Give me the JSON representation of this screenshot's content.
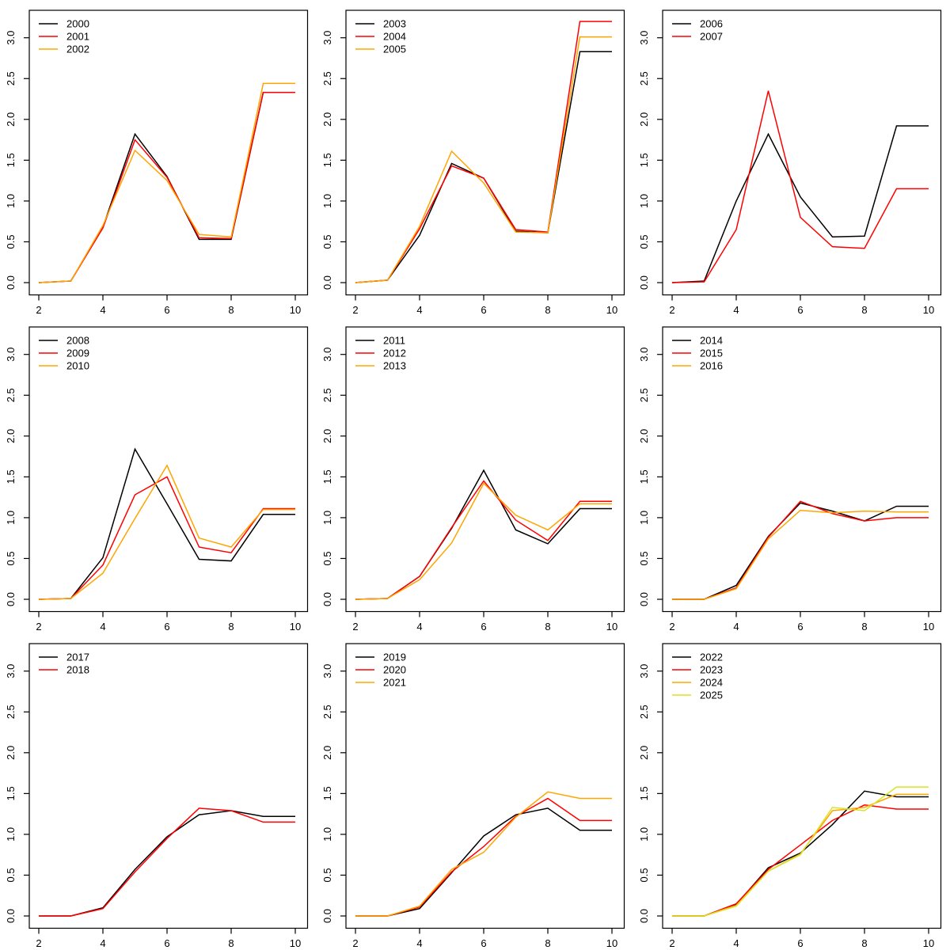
{
  "figure": {
    "background": "#ffffff",
    "grid_layout": "3x3",
    "axis_color": "#000000"
  },
  "chart_data": {
    "type": "line",
    "title": "",
    "xlabel": "",
    "ylabel": "",
    "x": [
      2,
      3,
      4,
      5,
      6,
      7,
      8,
      9,
      10
    ],
    "xlim": [
      2,
      10
    ],
    "ylim": [
      0,
      3.3
    ],
    "x_ticks": [
      2,
      4,
      6,
      8,
      10
    ],
    "x_tick_labels": [
      "2",
      "4",
      "6",
      "8",
      "10"
    ],
    "y_ticks": [
      0,
      0.5,
      1,
      1.5,
      2,
      2.5,
      3
    ],
    "y_tick_labels": [
      "0.0",
      "0.5",
      "1.0",
      "1.5",
      "2.0",
      "2.5",
      "3.0"
    ],
    "grid": false,
    "legend_position": "top-left",
    "colors": {
      "black": "#000000",
      "red": "#FF0000",
      "orange": "#FFA500",
      "yellow": "#D8E424"
    },
    "panels": [
      {
        "series": [
          {
            "name": "2000",
            "color": "#000000",
            "values": [
              0,
              0.02,
              0.68,
              1.82,
              1.3,
              0.53,
              0.53,
              2.33,
              2.33
            ]
          },
          {
            "name": "2001",
            "color": "#FF0000",
            "values": [
              0,
              0.02,
              0.67,
              1.75,
              1.29,
              0.55,
              0.54,
              2.33,
              2.33
            ]
          },
          {
            "name": "2002",
            "color": "#FFA500",
            "values": [
              0,
              0.02,
              0.7,
              1.62,
              1.25,
              0.59,
              0.56,
              2.44,
              2.44
            ]
          }
        ]
      },
      {
        "series": [
          {
            "name": "2003",
            "color": "#000000",
            "values": [
              0,
              0.03,
              0.58,
              1.46,
              1.28,
              0.63,
              0.61,
              2.83,
              2.83
            ]
          },
          {
            "name": "2004",
            "color": "#FF0000",
            "values": [
              0,
              0.03,
              0.66,
              1.43,
              1.28,
              0.65,
              0.62,
              3.2,
              3.2
            ]
          },
          {
            "name": "2005",
            "color": "#FFA500",
            "values": [
              0,
              0.03,
              0.69,
              1.61,
              1.22,
              0.62,
              0.61,
              3.01,
              3.01
            ]
          }
        ]
      },
      {
        "series": [
          {
            "name": "2006",
            "color": "#000000",
            "values": [
              0,
              0.02,
              1.0,
              1.82,
              1.05,
              0.56,
              0.57,
              1.92,
              1.92
            ]
          },
          {
            "name": "2007",
            "color": "#FF0000",
            "values": [
              0,
              0.01,
              0.65,
              2.35,
              0.8,
              0.44,
              0.42,
              1.15,
              1.15
            ]
          }
        ]
      },
      {
        "series": [
          {
            "name": "2008",
            "color": "#000000",
            "values": [
              0,
              0.01,
              0.51,
              1.84,
              1.17,
              0.49,
              0.47,
              1.04,
              1.04
            ]
          },
          {
            "name": "2009",
            "color": "#FF0000",
            "values": [
              0,
              0.01,
              0.42,
              1.28,
              1.5,
              0.64,
              0.57,
              1.11,
              1.11
            ]
          },
          {
            "name": "2010",
            "color": "#FFA500",
            "values": [
              0,
              0.01,
              0.32,
              0.99,
              1.64,
              0.75,
              0.64,
              1.1,
              1.1
            ]
          }
        ]
      },
      {
        "series": [
          {
            "name": "2011",
            "color": "#000000",
            "values": [
              0,
              0.01,
              0.28,
              0.87,
              1.58,
              0.85,
              0.68,
              1.11,
              1.11
            ]
          },
          {
            "name": "2012",
            "color": "#FF0000",
            "values": [
              0,
              0.01,
              0.28,
              0.88,
              1.45,
              0.97,
              0.72,
              1.2,
              1.2
            ]
          },
          {
            "name": "2013",
            "color": "#FFA500",
            "values": [
              0,
              0.01,
              0.24,
              0.69,
              1.42,
              1.03,
              0.85,
              1.17,
              1.17
            ]
          }
        ]
      },
      {
        "series": [
          {
            "name": "2014",
            "color": "#000000",
            "values": [
              0,
              0,
              0.17,
              0.77,
              1.18,
              1.08,
              0.96,
              1.14,
              1.14
            ]
          },
          {
            "name": "2015",
            "color": "#FF0000",
            "values": [
              0,
              0,
              0.14,
              0.76,
              1.2,
              1.05,
              0.96,
              1.0,
              1.0
            ]
          },
          {
            "name": "2016",
            "color": "#FFA500",
            "values": [
              0,
              0,
              0.13,
              0.74,
              1.09,
              1.06,
              1.08,
              1.07,
              1.07
            ]
          }
        ]
      },
      {
        "series": [
          {
            "name": "2017",
            "color": "#000000",
            "values": [
              0,
              0,
              0.1,
              0.57,
              0.97,
              1.24,
              1.29,
              1.22,
              1.22
            ]
          },
          {
            "name": "2018",
            "color": "#FF0000",
            "values": [
              0,
              0,
              0.09,
              0.54,
              0.95,
              1.32,
              1.29,
              1.15,
              1.15
            ]
          }
        ]
      },
      {
        "series": [
          {
            "name": "2019",
            "color": "#000000",
            "values": [
              0,
              0,
              0.09,
              0.53,
              0.98,
              1.24,
              1.32,
              1.05,
              1.05
            ]
          },
          {
            "name": "2020",
            "color": "#FF0000",
            "values": [
              0,
              0,
              0.11,
              0.54,
              0.85,
              1.22,
              1.44,
              1.17,
              1.17
            ]
          },
          {
            "name": "2021",
            "color": "#FFA500",
            "values": [
              0,
              0,
              0.12,
              0.57,
              0.78,
              1.21,
              1.52,
              1.44,
              1.44
            ]
          }
        ]
      },
      {
        "series": [
          {
            "name": "2022",
            "color": "#000000",
            "values": [
              0,
              0,
              0.14,
              0.59,
              0.77,
              1.12,
              1.53,
              1.46,
              1.46
            ]
          },
          {
            "name": "2023",
            "color": "#FF0000",
            "values": [
              0,
              0,
              0.15,
              0.57,
              0.87,
              1.17,
              1.36,
              1.31,
              1.31
            ]
          },
          {
            "name": "2024",
            "color": "#FFA500",
            "values": [
              0,
              0,
              0.13,
              0.55,
              0.76,
              1.29,
              1.33,
              1.49,
              1.49
            ]
          },
          {
            "name": "2025",
            "color": "#D8E424",
            "values": [
              0,
              0,
              0.12,
              0.55,
              0.75,
              1.33,
              1.29,
              1.58,
              1.58
            ]
          }
        ]
      }
    ]
  }
}
